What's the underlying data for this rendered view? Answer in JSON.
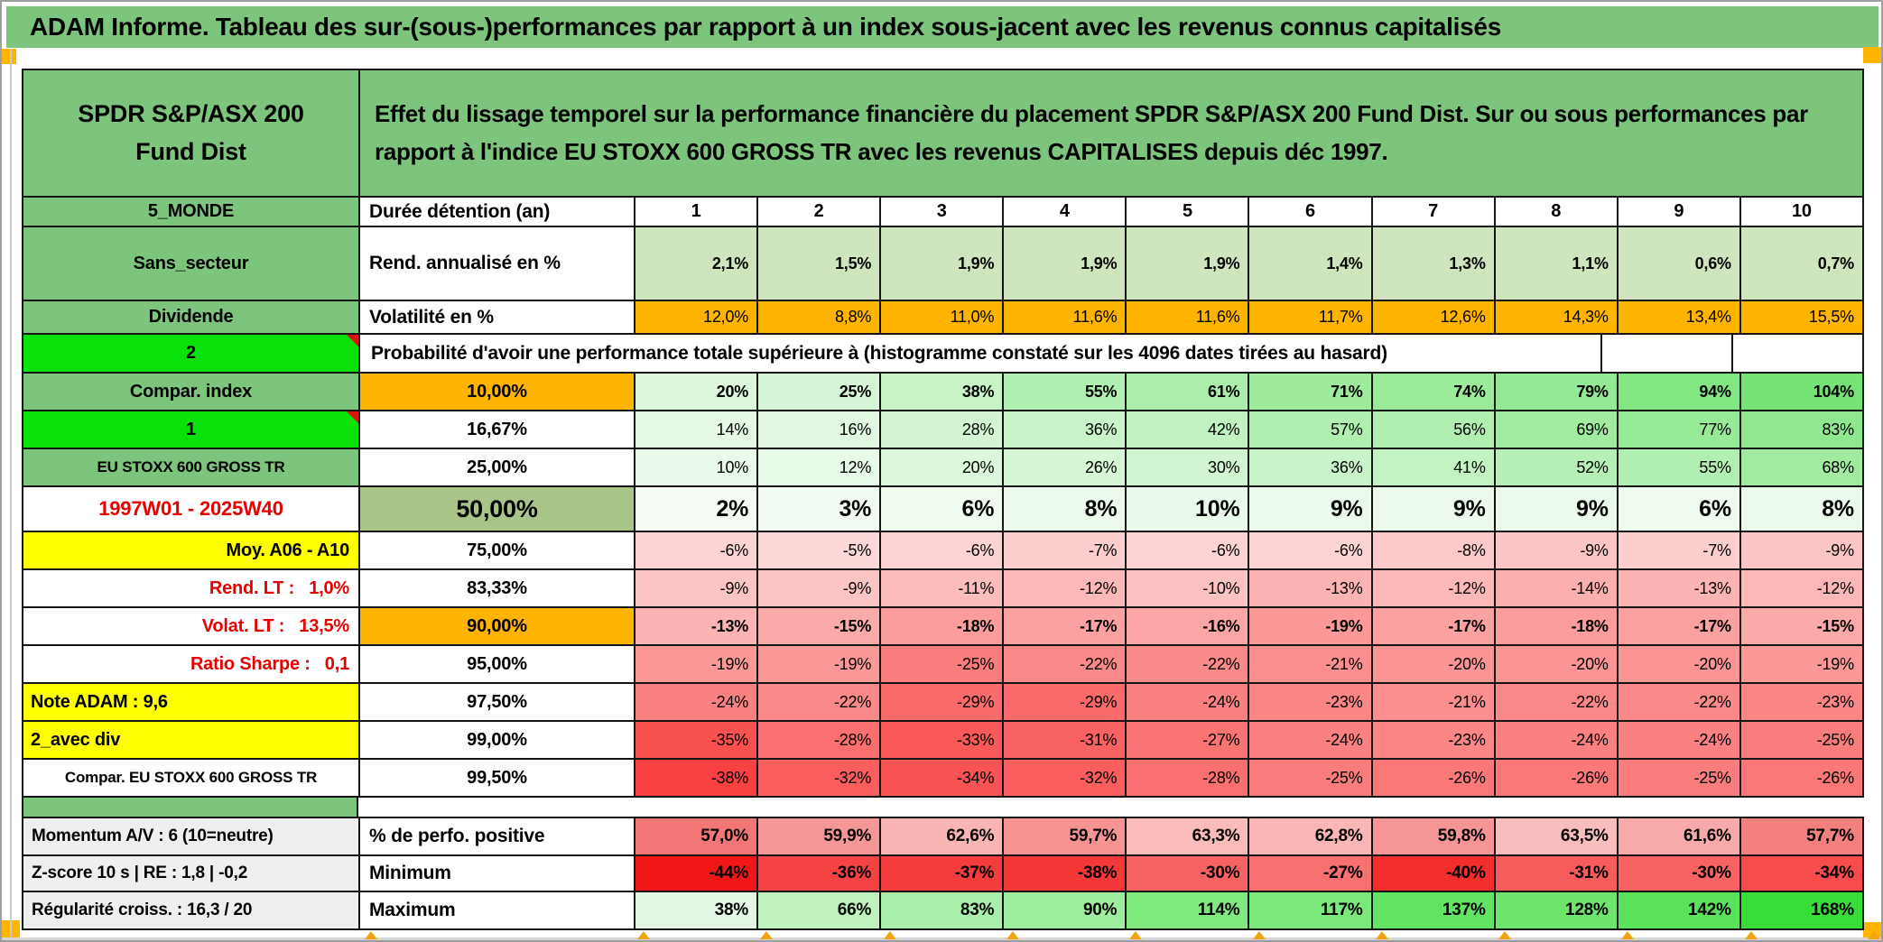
{
  "palette": {
    "green_header": "#7dc47d",
    "bright_green": "#0ae10a",
    "orange": "#ffb400",
    "yellow": "#ffff00",
    "sage": "#a9c489",
    "red_text": "#e60000",
    "gray_label": "#efefef"
  },
  "title_bar": {
    "text": "ADAM Informe. Tableau des sur-(sous-)performances par rapport à un index sous-jacent avec les revenus connus capitalisés"
  },
  "header": {
    "fund_name": "SPDR S&P/ASX 200 Fund Dist",
    "description": "Effet du lissage temporel sur la performance financière du placement SPDR S&P/ASX 200 Fund Dist. Sur ou sous performances par rapport à l'indice EU STOXX 600 GROSS TR avec les revenus CAPITALISES depuis déc 1997."
  },
  "table": {
    "rows": [
      {
        "a": "5_MONDE",
        "b": "Durée détention (an)",
        "values": [
          "1",
          "2",
          "3",
          "4",
          "5",
          "6",
          "7",
          "8",
          "9",
          "10"
        ]
      },
      {
        "a": "Sans_secteur",
        "b": "Rend. annualisé en %",
        "values": [
          "2,1%",
          "1,5%",
          "1,9%",
          "1,9%",
          "1,9%",
          "1,4%",
          "1,3%",
          "1,1%",
          "0,6%",
          "0,7%"
        ]
      },
      {
        "a": "Dividende",
        "b": "Volatilité en %",
        "values": [
          "12,0%",
          "8,8%",
          "11,0%",
          "11,6%",
          "11,6%",
          "11,7%",
          "12,6%",
          "14,3%",
          "13,4%",
          "15,5%"
        ]
      },
      {
        "a": "2",
        "b": "Probabilité d'avoir une performance totale supérieure à (histogramme constaté sur les 4096 dates tirées au hasard)",
        "values": [
          "",
          ""
        ]
      },
      {
        "a": "Compar. index",
        "b": "10,00%",
        "values": [
          "20%",
          "25%",
          "38%",
          "55%",
          "61%",
          "71%",
          "74%",
          "79%",
          "94%",
          "104%"
        ]
      },
      {
        "a": "1",
        "b": "16,67%",
        "values": [
          "14%",
          "16%",
          "28%",
          "36%",
          "42%",
          "57%",
          "56%",
          "69%",
          "77%",
          "83%"
        ]
      },
      {
        "a": "EU STOXX 600 GROSS TR",
        "b": "25,00%",
        "values": [
          "10%",
          "12%",
          "20%",
          "26%",
          "30%",
          "36%",
          "41%",
          "52%",
          "55%",
          "68%"
        ]
      },
      {
        "a": "1997W01 - 2025W40",
        "b": "50,00%",
        "values": [
          "2%",
          "3%",
          "6%",
          "8%",
          "10%",
          "9%",
          "9%",
          "9%",
          "6%",
          "8%"
        ]
      },
      {
        "a": "Moy. A06 - A10",
        "b": "75,00%",
        "values": [
          "-6%",
          "-5%",
          "-6%",
          "-7%",
          "-6%",
          "-6%",
          "-8%",
          "-9%",
          "-7%",
          "-9%"
        ]
      },
      {
        "a": "Rend. LT :   1,0%",
        "b": "83,33%",
        "values": [
          "-9%",
          "-9%",
          "-11%",
          "-12%",
          "-10%",
          "-13%",
          "-12%",
          "-14%",
          "-13%",
          "-12%"
        ]
      },
      {
        "a": "Volat. LT :   13,5%",
        "b": "90,00%",
        "values": [
          "-13%",
          "-15%",
          "-18%",
          "-17%",
          "-16%",
          "-19%",
          "-17%",
          "-18%",
          "-17%",
          "-15%"
        ]
      },
      {
        "a": "Ratio Sharpe :   0,1",
        "b": "95,00%",
        "values": [
          "-19%",
          "-19%",
          "-25%",
          "-22%",
          "-22%",
          "-21%",
          "-20%",
          "-20%",
          "-20%",
          "-19%"
        ]
      },
      {
        "a": "Note ADAM : 9,6",
        "b": "97,50%",
        "values": [
          "-24%",
          "-22%",
          "-29%",
          "-29%",
          "-24%",
          "-23%",
          "-21%",
          "-22%",
          "-22%",
          "-23%"
        ]
      },
      {
        "a": "2_avec div",
        "b": "99,00%",
        "values": [
          "-35%",
          "-28%",
          "-33%",
          "-31%",
          "-27%",
          "-24%",
          "-23%",
          "-24%",
          "-24%",
          "-25%"
        ]
      },
      {
        "a": "Compar. EU STOXX 600 GROSS TR",
        "b": "99,50%",
        "values": [
          "-38%",
          "-32%",
          "-34%",
          "-32%",
          "-28%",
          "-25%",
          "-26%",
          "-26%",
          "-25%",
          "-26%"
        ]
      }
    ],
    "bottom_rows": [
      {
        "a": "Momentum A/V : 6 (10=neutre)",
        "b": "% de perfo. positive",
        "values": [
          "57,0%",
          "59,9%",
          "62,6%",
          "59,7%",
          "63,3%",
          "62,8%",
          "59,8%",
          "63,5%",
          "61,6%",
          "57,7%"
        ]
      },
      {
        "a": "Z-score 10 s | RE : 1,8 | -0,2",
        "b": "Minimum",
        "values": [
          "-44%",
          "-36%",
          "-37%",
          "-38%",
          "-30%",
          "-27%",
          "-40%",
          "-31%",
          "-30%",
          "-34%"
        ]
      },
      {
        "a": "Régularité croiss. : 16,3 / 20",
        "b": "Maximum",
        "values": [
          "38%",
          "66%",
          "83%",
          "90%",
          "114%",
          "117%",
          "137%",
          "128%",
          "142%",
          "168%"
        ]
      }
    ]
  }
}
